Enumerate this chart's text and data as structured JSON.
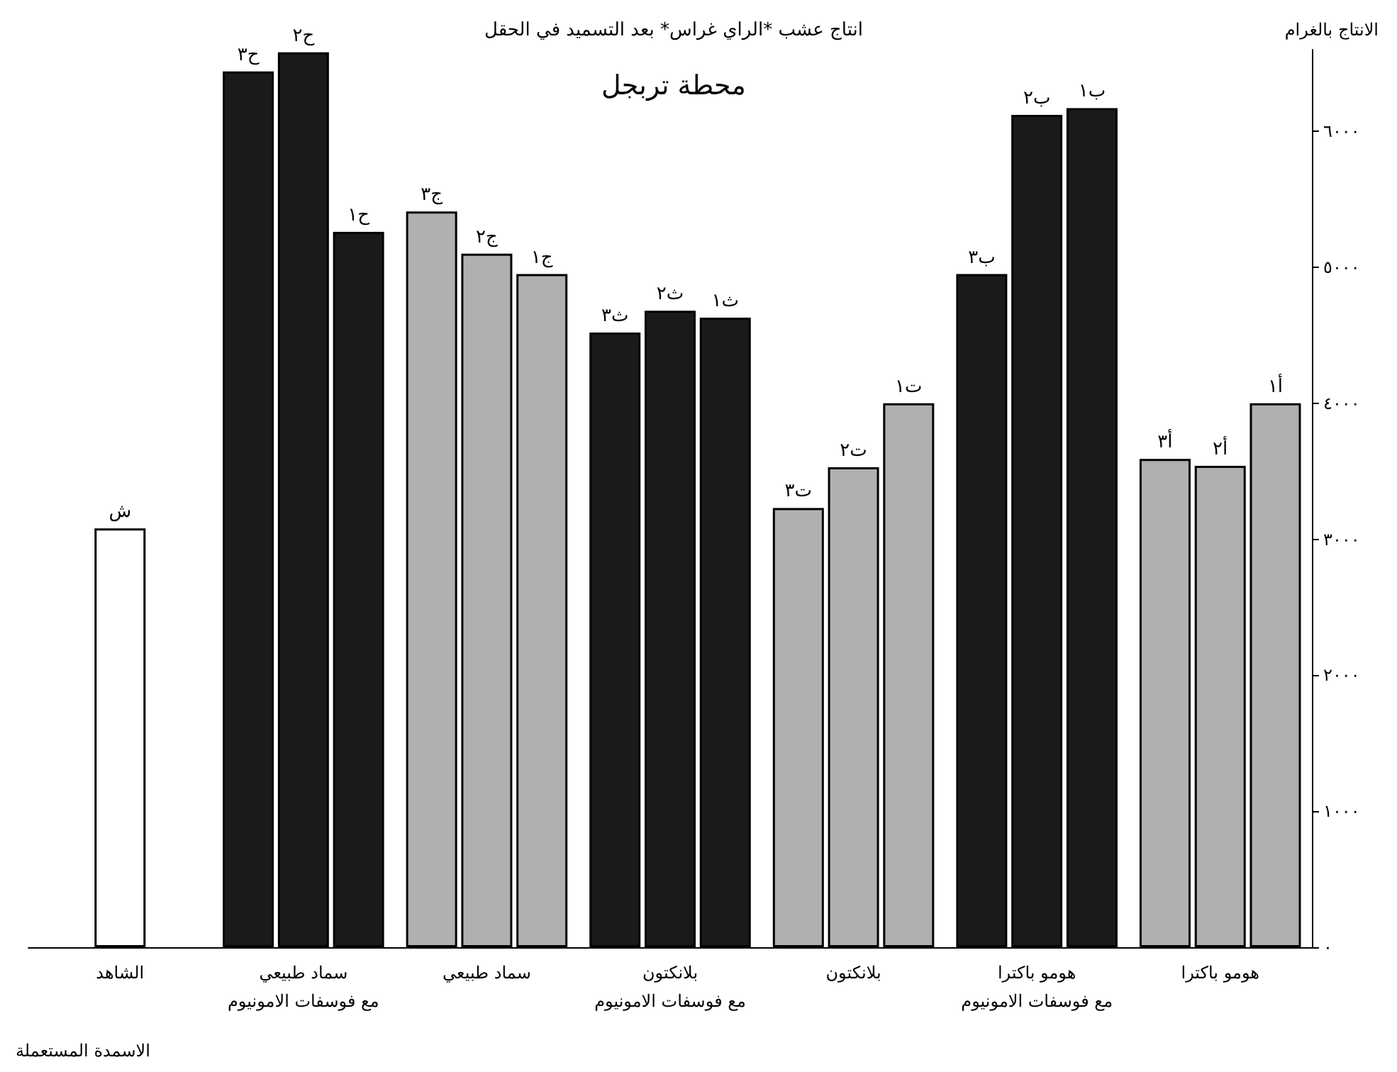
{
  "chart_data": {
    "type": "bar",
    "title": "انتاج عشب *الراي غراس* بعد التسميد في الحقل",
    "subtitle": "محطة تربجل",
    "ylabel": "الانتاج بالغرام",
    "xlabel": "الاسمدة المستعملة",
    "categories": [
      "الشاهد",
      "سماد طبيعي\nمع فوسفات الامونيوم",
      "سماد طبيعي",
      "بلانكتون\nمع فوسفات الامونيوم",
      "بلانكتون",
      "هومو باكترا\nمع فوسفات الامونيوم",
      "هومو باكترا"
    ],
    "series": [
      {
        "values": [
          null,
          6440,
          5410,
          4520,
          3230,
          4950,
          3590
        ],
        "value_labels": [
          null,
          "ح٣",
          "ج٣",
          "ث٣",
          "ت٣",
          "ب٣",
          "أ٣"
        ],
        "colors": [
          "#ffffff",
          "#1a1a1a",
          "#b0b0b0",
          "#1a1a1a",
          "#b0b0b0",
          "#1a1a1a",
          "#b0b0b0"
        ]
      },
      {
        "values": [
          3080,
          6580,
          5100,
          4680,
          3530,
          6120,
          3540
        ],
        "value_labels": [
          "ش",
          "ح٢",
          "ج٢",
          "ث٢",
          "ت٢",
          "ب٢",
          "أ٢"
        ],
        "colors": [
          "#ffffff",
          "#1a1a1a",
          "#b0b0b0",
          "#1a1a1a",
          "#b0b0b0",
          "#1a1a1a",
          "#b0b0b0"
        ]
      },
      {
        "values": [
          null,
          5260,
          4950,
          4630,
          4000,
          6170,
          4000
        ],
        "value_labels": [
          null,
          "ح١",
          "ج١",
          "ث١",
          "ت١",
          "ب١",
          "أ١"
        ],
        "colors": [
          "#ffffff",
          "#1a1a1a",
          "#b0b0b0",
          "#1a1a1a",
          "#b0b0b0",
          "#1a1a1a",
          "#b0b0b0"
        ]
      }
    ],
    "ylim": [
      0,
      6600
    ],
    "yticks": [
      {
        "value": 0,
        "label": "٠"
      },
      {
        "value": 1000,
        "label": "١٠٠٠"
      },
      {
        "value": 2000,
        "label": "٢٠٠٠"
      },
      {
        "value": 3000,
        "label": "٣٠٠٠"
      },
      {
        "value": 4000,
        "label": "٤٠٠٠"
      },
      {
        "value": 5000,
        "label": "٥٠٠٠"
      },
      {
        "value": 6000,
        "label": "٦٠٠٠"
      }
    ],
    "grid": false
  }
}
